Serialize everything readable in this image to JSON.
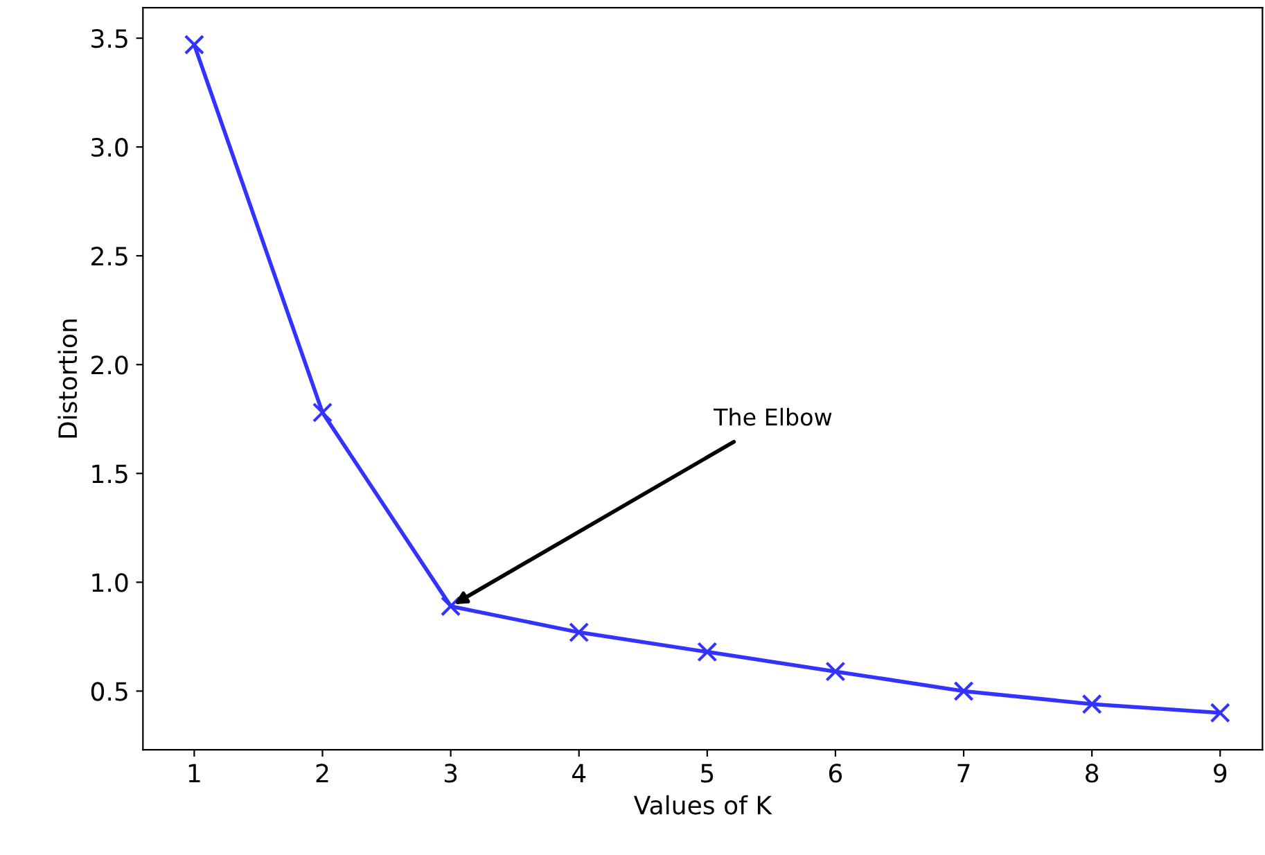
{
  "chart_data": {
    "type": "line",
    "xlabel": "Values of K",
    "ylabel": "Distortion",
    "x": [
      1,
      2,
      3,
      4,
      5,
      6,
      7,
      8,
      9
    ],
    "series": [
      {
        "color": "#3333ff",
        "values": [
          3.47,
          1.78,
          0.89,
          0.77,
          0.68,
          0.59,
          0.5,
          0.44,
          0.4
        ]
      }
    ],
    "xlim": [
      0.6,
      9.33
    ],
    "ylim": [
      0.23,
      3.64
    ],
    "xticks": [
      1,
      2,
      3,
      4,
      5,
      6,
      7,
      8,
      9
    ],
    "yticks": [
      0.5,
      {
        "value": 1,
        "label": "1.0"
      },
      1.5,
      {
        "value": 2,
        "label": "2.0"
      },
      2.5,
      {
        "value": 3,
        "label": "3.0"
      },
      3.5
    ],
    "annotations": [
      {
        "text": "The Elbow",
        "x": 3,
        "y": 0.89
      }
    ],
    "marker": "cross",
    "line_style": "solid"
  }
}
